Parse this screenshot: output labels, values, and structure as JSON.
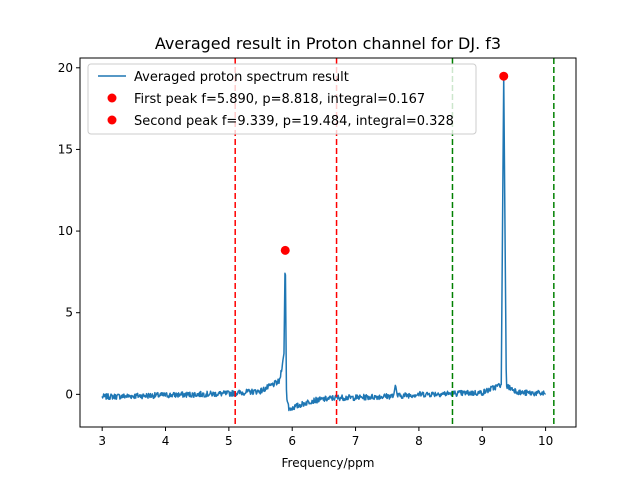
{
  "chart_data": {
    "type": "line",
    "title": "Averaged result in Proton channel for DJ. f3",
    "xlabel": "Frequency/ppm",
    "ylabel": "",
    "xlim": [
      2.65,
      10.48
    ],
    "ylim": [
      -2.0,
      20.6
    ],
    "xticks": [
      3,
      4,
      5,
      6,
      7,
      8,
      9,
      10
    ],
    "yticks": [
      0,
      5,
      10,
      15,
      20
    ],
    "grid": false,
    "legend_position": "top-left",
    "series": [
      {
        "name": "Averaged proton spectrum result",
        "kind": "line",
        "color": "#1f77b4",
        "x_range": [
          3.0,
          10.0
        ],
        "features": {
          "baseline_segments": [
            [
              3.0,
              -0.15
            ],
            [
              4.0,
              -0.05
            ],
            [
              5.0,
              0.05
            ],
            [
              5.5,
              0.2
            ],
            [
              5.8,
              0.8
            ],
            [
              5.87,
              2.5
            ],
            [
              5.89,
              8.818
            ],
            [
              5.91,
              -0.2
            ],
            [
              5.95,
              -0.9
            ],
            [
              6.3,
              -0.4
            ],
            [
              6.7,
              -0.2
            ],
            [
              7.0,
              -0.2
            ],
            [
              7.6,
              -0.1
            ],
            [
              7.63,
              0.6
            ],
            [
              7.66,
              -0.1
            ],
            [
              8.0,
              0.0
            ],
            [
              9.0,
              0.1
            ],
            [
              9.3,
              0.6
            ],
            [
              9.339,
              19.484
            ],
            [
              9.38,
              0.5
            ],
            [
              9.6,
              0.1
            ],
            [
              10.0,
              0.05
            ]
          ]
        }
      },
      {
        "name": "First peak f=5.890, p=8.818, integral=0.167",
        "kind": "scatter",
        "color": "#ff0000",
        "points": [
          [
            5.89,
            8.818
          ]
        ]
      },
      {
        "name": "Second peak f=9.339, p=19.484, integral=0.328",
        "kind": "scatter",
        "color": "#ff0000",
        "points": [
          [
            9.339,
            19.484
          ]
        ]
      }
    ],
    "vlines": [
      {
        "x": 5.1,
        "color": "#ff0000",
        "style": "dashed"
      },
      {
        "x": 6.7,
        "color": "#ff0000",
        "style": "dashed"
      },
      {
        "x": 8.53,
        "color": "#008000",
        "style": "dashed"
      },
      {
        "x": 10.13,
        "color": "#008000",
        "style": "dashed"
      }
    ]
  }
}
